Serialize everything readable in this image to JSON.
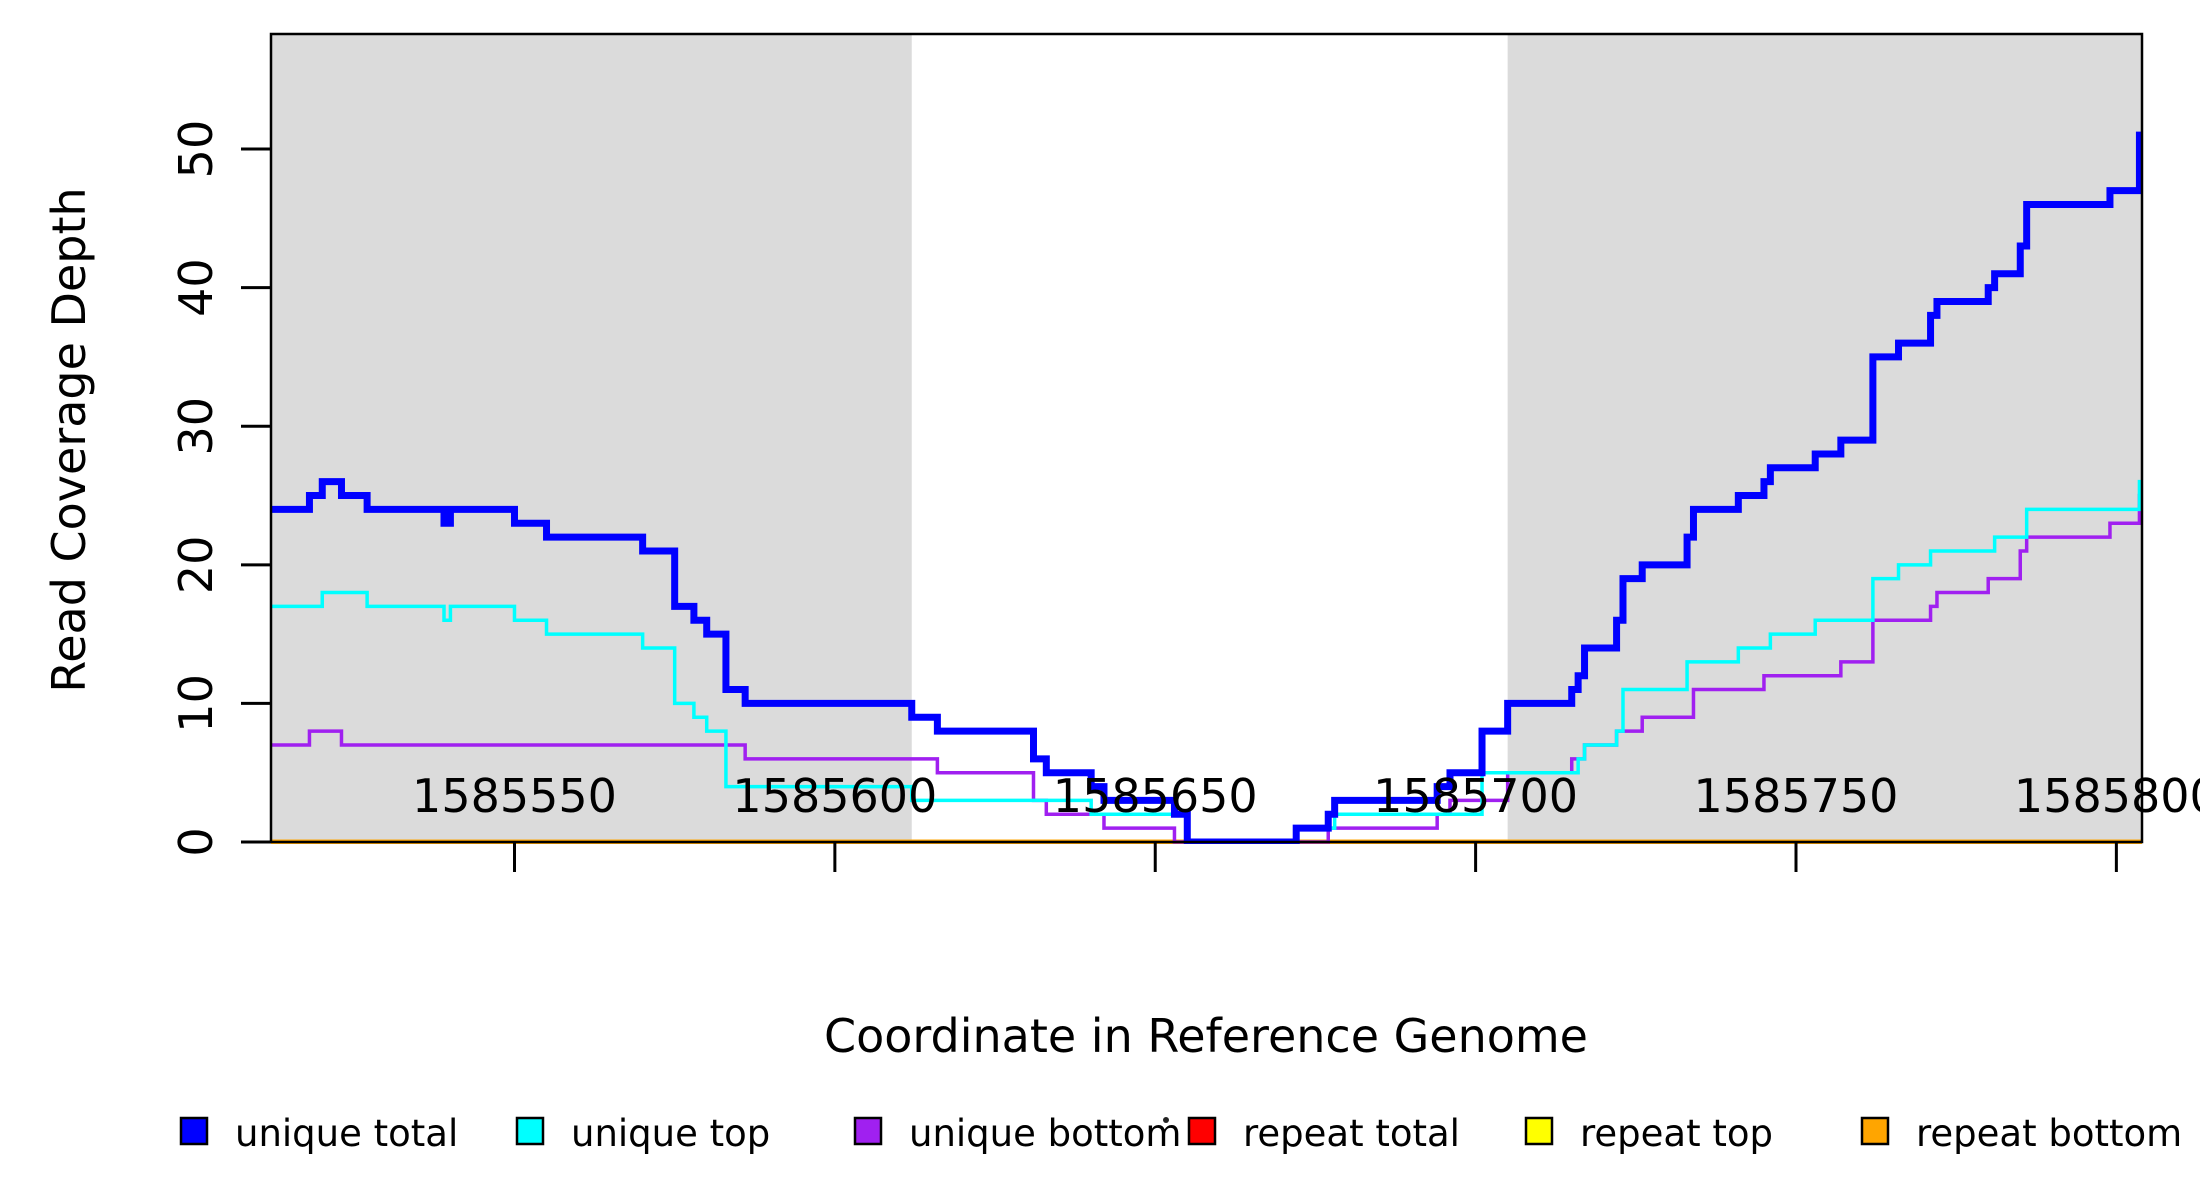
{
  "figure": {
    "background": "#ffffff"
  },
  "chart_data": {
    "type": "line",
    "subtype": "step-coverage",
    "title": "",
    "xlabel": "Coordinate in Reference Genome",
    "ylabel": "Read Coverage Depth",
    "xlim": [
      1585512,
      1585804
    ],
    "ylim": [
      0,
      58.3
    ],
    "grid": false,
    "x_ticks": [
      1585550,
      1585600,
      1585650,
      1585700,
      1585750,
      1585800
    ],
    "x_tick_labels": [
      "1585550",
      "1585600",
      "1585650",
      "1585700",
      "1585750",
      "1585800"
    ],
    "y_ticks": [
      0,
      10,
      20,
      30,
      40,
      50
    ],
    "y_tick_labels": [
      "0",
      "10",
      "20",
      "30",
      "40",
      "50"
    ],
    "shaded_regions": [
      {
        "x0": 1585512,
        "x1": 1585612,
        "color": "#DBDBDB"
      },
      {
        "x0": 1585705,
        "x1": 1585804,
        "color": "#DBDBDB"
      }
    ],
    "legend": {
      "position": "bottom",
      "entries": [
        {
          "label": "unique total",
          "color": "#0000FF"
        },
        {
          "label": "unique top",
          "color": "#00FFFF"
        },
        {
          "label": "unique bottom",
          "color": "#A020F0"
        },
        {
          "label": "repeat total",
          "color": "#FF0000"
        },
        {
          "label": "repeat top",
          "color": "#FFFF00"
        },
        {
          "label": "repeat bottom",
          "color": "#FFA500"
        }
      ]
    },
    "series": [
      {
        "name": "repeat total",
        "color": "#FF0000",
        "width": 3,
        "points": [
          [
            1585512,
            0
          ]
        ]
      },
      {
        "name": "repeat top",
        "color": "#FFFF00",
        "width": 3,
        "points": [
          [
            1585512,
            0
          ]
        ]
      },
      {
        "name": "repeat bottom",
        "color": "#FFA500",
        "width": 5,
        "points": [
          [
            1585512,
            0
          ]
        ]
      },
      {
        "name": "unique bottom",
        "color": "#A020F0",
        "width": 3.5,
        "points": [
          [
            1585512,
            7
          ],
          [
            1585518,
            8
          ],
          [
            1585523,
            7
          ],
          [
            1585586,
            6
          ],
          [
            1585616,
            5
          ],
          [
            1585631,
            3
          ],
          [
            1585633,
            2
          ],
          [
            1585642,
            1
          ],
          [
            1585653,
            0
          ],
          [
            1585677,
            1
          ],
          [
            1585694,
            2
          ],
          [
            1585696,
            3
          ],
          [
            1585705,
            5
          ],
          [
            1585715,
            6
          ],
          [
            1585717,
            7
          ],
          [
            1585722,
            8
          ],
          [
            1585726,
            9
          ],
          [
            1585734,
            11
          ],
          [
            1585745,
            12
          ],
          [
            1585757,
            13
          ],
          [
            1585762,
            16
          ],
          [
            1585771,
            17
          ],
          [
            1585772,
            18
          ],
          [
            1585780,
            19
          ],
          [
            1585785,
            21
          ],
          [
            1585786,
            22
          ],
          [
            1585799,
            23
          ],
          [
            1585803.6,
            25
          ]
        ]
      },
      {
        "name": "unique top",
        "color": "#00FFFF",
        "width": 3.5,
        "points": [
          [
            1585512,
            17
          ],
          [
            1585520,
            18
          ],
          [
            1585527,
            17
          ],
          [
            1585539,
            16
          ],
          [
            1585540,
            17
          ],
          [
            1585550,
            16
          ],
          [
            1585555,
            15
          ],
          [
            1585570,
            14
          ],
          [
            1585575,
            10
          ],
          [
            1585578,
            9
          ],
          [
            1585580,
            8
          ],
          [
            1585583,
            4
          ],
          [
            1585612,
            3
          ],
          [
            1585640,
            2
          ],
          [
            1585655,
            0
          ],
          [
            1585672,
            1
          ],
          [
            1585678,
            2
          ],
          [
            1585701,
            5
          ],
          [
            1585716,
            6
          ],
          [
            1585717,
            7
          ],
          [
            1585722,
            8
          ],
          [
            1585723,
            11
          ],
          [
            1585733,
            13
          ],
          [
            1585741,
            14
          ],
          [
            1585746,
            15
          ],
          [
            1585753,
            16
          ],
          [
            1585762,
            19
          ],
          [
            1585766,
            20
          ],
          [
            1585771,
            21
          ],
          [
            1585781,
            22
          ],
          [
            1585786,
            24
          ],
          [
            1585803.6,
            26
          ]
        ]
      },
      {
        "name": "unique total",
        "color": "#0000FF",
        "width": 7,
        "points": [
          [
            1585512,
            24
          ],
          [
            1585518,
            25
          ],
          [
            1585520,
            26
          ],
          [
            1585523,
            25
          ],
          [
            1585527,
            24
          ],
          [
            1585539,
            23
          ],
          [
            1585540,
            24
          ],
          [
            1585550,
            23
          ],
          [
            1585555,
            22
          ],
          [
            1585570,
            21
          ],
          [
            1585575,
            17
          ],
          [
            1585578,
            16
          ],
          [
            1585580,
            15
          ],
          [
            1585583,
            11
          ],
          [
            1585586,
            10
          ],
          [
            1585612,
            9
          ],
          [
            1585616,
            8
          ],
          [
            1585631,
            6
          ],
          [
            1585633,
            5
          ],
          [
            1585640,
            4
          ],
          [
            1585642,
            3
          ],
          [
            1585653,
            2
          ],
          [
            1585655,
            0
          ],
          [
            1585672,
            1
          ],
          [
            1585677,
            2
          ],
          [
            1585678,
            3
          ],
          [
            1585694,
            4
          ],
          [
            1585696,
            5
          ],
          [
            1585701,
            8
          ],
          [
            1585705,
            10
          ],
          [
            1585715,
            11
          ],
          [
            1585716,
            12
          ],
          [
            1585717,
            14
          ],
          [
            1585722,
            16
          ],
          [
            1585723,
            19
          ],
          [
            1585726,
            20
          ],
          [
            1585733,
            22
          ],
          [
            1585734,
            24
          ],
          [
            1585741,
            25
          ],
          [
            1585745,
            26
          ],
          [
            1585746,
            27
          ],
          [
            1585753,
            28
          ],
          [
            1585757,
            29
          ],
          [
            1585762,
            35
          ],
          [
            1585766,
            36
          ],
          [
            1585771,
            38
          ],
          [
            1585772,
            39
          ],
          [
            1585780,
            40
          ],
          [
            1585781,
            41
          ],
          [
            1585785,
            43
          ],
          [
            1585786,
            46
          ],
          [
            1585799,
            47
          ],
          [
            1585803.6,
            51
          ]
        ]
      }
    ]
  }
}
